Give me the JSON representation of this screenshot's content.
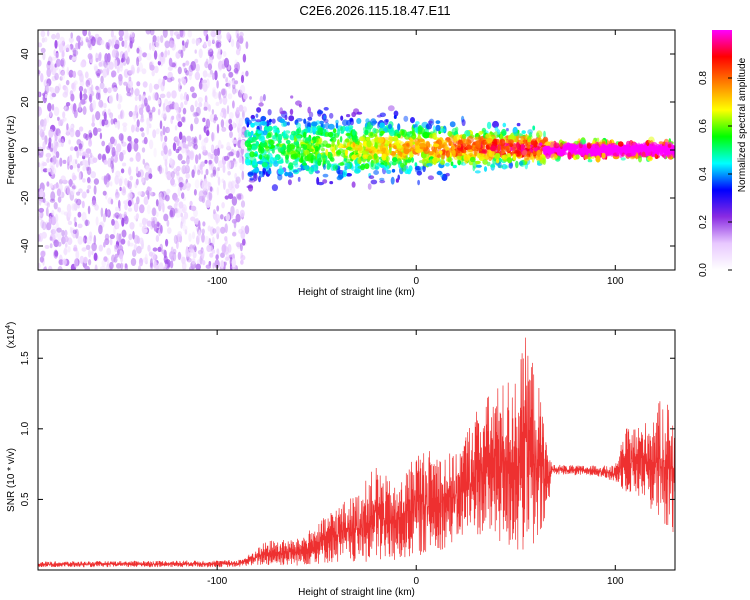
{
  "figure_title": "C2E6.2026.115.18.47.E11",
  "chart_data": [
    {
      "type": "heatmap",
      "title": "C2E6.2026.115.18.47.E11",
      "xlabel": "Height of straight line (km)",
      "ylabel": "Frequency (Hz)",
      "xlim": [
        -190,
        130
      ],
      "ylim": [
        -50,
        50
      ],
      "x_ticks": [
        -100,
        0,
        100
      ],
      "x_tick_labels": [
        "-100",
        "0",
        "100"
      ],
      "y_ticks": [
        -40,
        -20,
        0,
        20,
        40
      ],
      "y_tick_labels": [
        "-40",
        "-20",
        "0",
        "20",
        "40"
      ],
      "colorbar": {
        "label": "Normalized spectral amplitude",
        "range": [
          0,
          1
        ],
        "ticks": [
          0.0,
          0.2,
          0.4,
          0.6,
          0.8
        ],
        "tick_labels": [
          "0.0",
          "0.2",
          "0.4",
          "0.6",
          "0.8"
        ],
        "colors": [
          "#ffffff",
          "#e8c8ff",
          "#8a2be2",
          "#0000ff",
          "#00ffff",
          "#00ff00",
          "#ffff00",
          "#ff8000",
          "#ff0000",
          "#ff00ff"
        ]
      },
      "regions": [
        {
          "x_range": [
            -190,
            -85
          ],
          "description": "noise",
          "freq_spread": 50,
          "amplitude": 0.12
        },
        {
          "x_range": [
            -85,
            65
          ],
          "description": "signal band",
          "center_freq": 1,
          "freq_spread_start": 15,
          "freq_spread_end": 6,
          "amplitude": 0.45
        },
        {
          "x_range": [
            65,
            130
          ],
          "description": "strong narrow signal",
          "center_freq": 0,
          "freq_spread": 3,
          "amplitude": 0.85
        }
      ]
    },
    {
      "type": "line",
      "xlabel": "Height of straight line (km)",
      "ylabel": "SNR (10 * v/v)",
      "y_scale_label": "(x10",
      "y_scale_exponent": "4",
      "y_scale_suffix": ")",
      "xlim": [
        -190,
        130
      ],
      "ylim": [
        0,
        1.7
      ],
      "x_ticks": [
        -100,
        0,
        100
      ],
      "x_tick_labels": [
        "-100",
        "0",
        "100"
      ],
      "y_ticks": [
        0.5,
        1.0,
        1.5
      ],
      "y_tick_labels": [
        "0.5",
        "1.0",
        "1.5"
      ],
      "color": "#ee3030",
      "envelope": {
        "x": [
          -190,
          -90,
          -85,
          -75,
          -60,
          -50,
          -40,
          -30,
          -20,
          -10,
          0,
          10,
          20,
          30,
          40,
          50,
          55,
          60,
          67,
          68,
          80,
          90,
          100,
          105,
          115,
          125,
          130
        ],
        "upper": [
          0.06,
          0.07,
          0.1,
          0.21,
          0.22,
          0.32,
          0.46,
          0.54,
          0.75,
          0.58,
          0.85,
          0.86,
          0.82,
          1.15,
          1.3,
          1.4,
          1.65,
          1.45,
          0.82,
          0.75,
          0.74,
          0.74,
          0.74,
          1.0,
          1.05,
          1.25,
          1.1
        ],
        "lower": [
          0.02,
          0.02,
          0.03,
          0.03,
          0.03,
          0.04,
          0.05,
          0.04,
          0.05,
          0.05,
          0.1,
          0.12,
          0.2,
          0.25,
          0.2,
          0.1,
          0.12,
          0.08,
          0.45,
          0.68,
          0.67,
          0.67,
          0.62,
          0.55,
          0.5,
          0.25,
          0.25
        ]
      }
    }
  ]
}
